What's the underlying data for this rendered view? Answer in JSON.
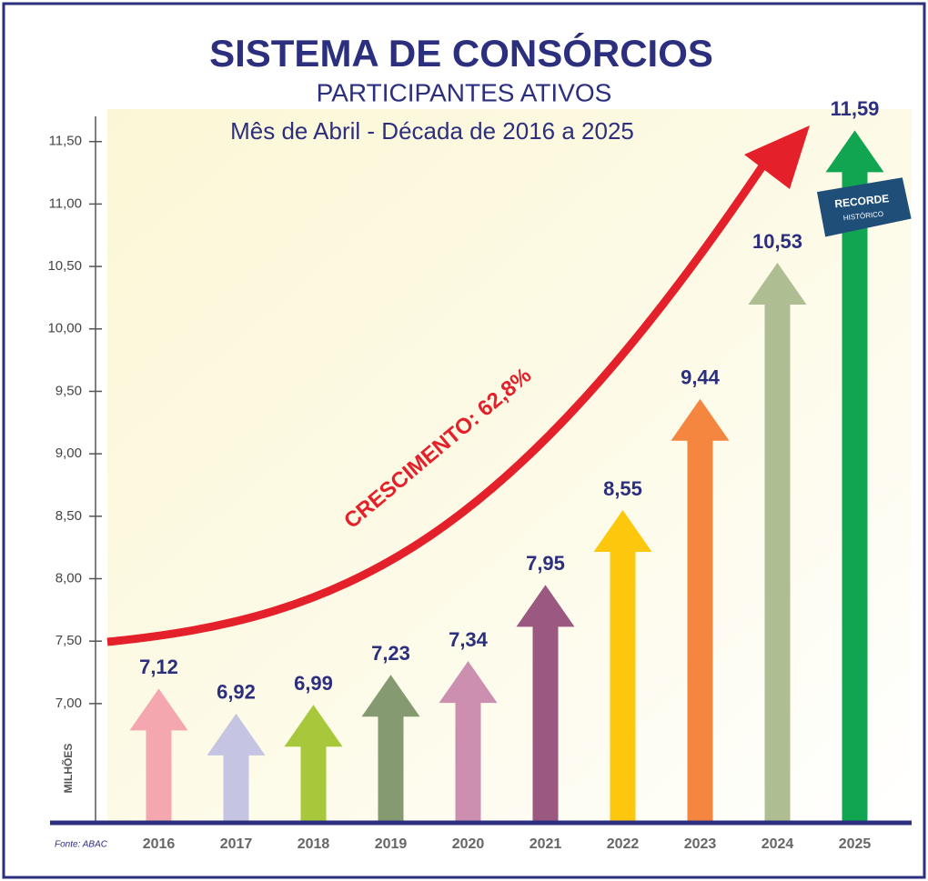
{
  "chart_data": {
    "type": "arrow-bar",
    "title": "SISTEMA DE CONSÓRCIOS",
    "subtitle": "PARTICIPANTES ATIVOS",
    "period": "Mês de Abril - Década de 2016 a 2025",
    "y_label": "MILHÕES",
    "source": "Fonte: ABAC",
    "growth_annotation": "CRESCIMENTO: 62,8%",
    "record_badge": {
      "title": "RECORDE",
      "subtitle": "HISTÓRICO"
    },
    "categories": [
      "2016",
      "2017",
      "2018",
      "2019",
      "2020",
      "2021",
      "2022",
      "2023",
      "2024",
      "2025"
    ],
    "values": [
      7.12,
      6.92,
      6.99,
      7.23,
      7.34,
      7.95,
      8.55,
      9.44,
      10.53,
      11.59
    ],
    "value_labels": [
      "7,12",
      "6,92",
      "6,99",
      "7,23",
      "7,34",
      "7,95",
      "8,55",
      "9,44",
      "10,53",
      "11,59"
    ],
    "colors": [
      "#f4a7ae",
      "#c5c5e3",
      "#a6c83a",
      "#869a72",
      "#cc8fb0",
      "#9b5880",
      "#fcc70d",
      "#f5863f",
      "#aebd92",
      "#11a552"
    ],
    "ylim": [
      6.06,
      11.76
    ],
    "yticks": [
      {
        "value": 7,
        "label": "7,00"
      },
      {
        "value": 7.5,
        "label": "7,50"
      },
      {
        "value": 8,
        "label": "8,00"
      },
      {
        "value": 8.5,
        "label": "8,50"
      },
      {
        "value": 9,
        "label": "9,00"
      },
      {
        "value": 9.5,
        "label": "9,50"
      },
      {
        "value": 10,
        "label": "10,00"
      },
      {
        "value": 10.5,
        "label": "10,50"
      },
      {
        "value": 11,
        "label": "11,00"
      },
      {
        "value": 11.5,
        "label": "11,50"
      }
    ],
    "grid": false
  }
}
